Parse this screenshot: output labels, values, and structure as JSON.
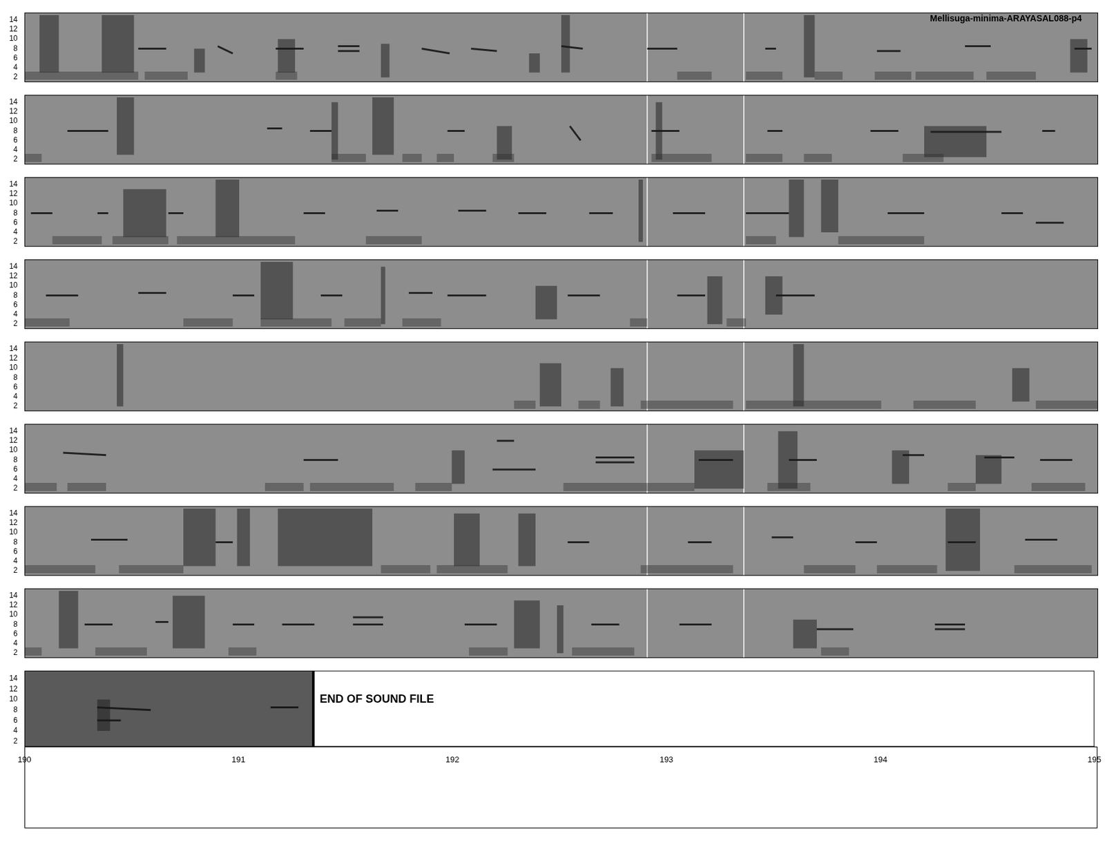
{
  "chart_data": [
    {
      "type": "spectrogram",
      "title": "Mellisuga-minima-ARAYASAL088-p4",
      "xlim": [
        150,
        155
      ],
      "ylim": [
        1,
        15.5
      ],
      "yticks": [
        2,
        4,
        6,
        8,
        10,
        12,
        14
      ],
      "tick_labels": "y",
      "bursts": [
        [
          150.07,
          150.16,
          3,
          15
        ],
        [
          150.36,
          150.51,
          3,
          15
        ],
        [
          150.79,
          150.84,
          3,
          8
        ],
        [
          151.18,
          151.26,
          3,
          10
        ],
        [
          151.66,
          151.7,
          2,
          9
        ],
        [
          152.35,
          152.4,
          3,
          7
        ],
        [
          152.5,
          152.54,
          3,
          15
        ],
        [
          153.63,
          153.68,
          2,
          15
        ],
        [
          154.87,
          154.95,
          3,
          10
        ]
      ],
      "tones": [
        [
          150.53,
          150.66,
          8,
          8
        ],
        [
          150.9,
          150.97,
          8.5,
          7
        ],
        [
          151.17,
          151.3,
          8,
          8
        ],
        [
          151.46,
          151.56,
          7.5,
          7.5
        ],
        [
          151.46,
          151.56,
          8.5,
          8.5
        ],
        [
          151.85,
          151.98,
          8,
          7
        ],
        [
          152.08,
          152.2,
          8,
          7.5
        ],
        [
          152.5,
          152.6,
          8.5,
          8
        ],
        [
          152.9,
          153.04,
          8,
          8
        ],
        [
          153.45,
          153.5,
          8,
          8
        ],
        [
          153.97,
          154.08,
          7.5,
          7.5
        ],
        [
          154.38,
          154.5,
          8.5,
          8.5
        ],
        [
          154.89,
          154.97,
          8,
          8
        ]
      ],
      "hum": [
        [
          150,
          150.53,
          1.5,
          3.2
        ],
        [
          150.56,
          150.76,
          1.5,
          3.2
        ],
        [
          151.17,
          151.27,
          1.5,
          3.2
        ],
        [
          153.04,
          153.2,
          1.5,
          3.2
        ],
        [
          153.36,
          153.53,
          1.5,
          3.2
        ],
        [
          153.68,
          153.81,
          1.5,
          3.2
        ],
        [
          153.96,
          154.13,
          1.5,
          3.2
        ],
        [
          154.15,
          154.42,
          1.5,
          3.2
        ],
        [
          154.48,
          154.71,
          1.5,
          3.2
        ]
      ],
      "markers": [
        152.9,
        153.35
      ]
    },
    {
      "type": "spectrogram",
      "xlim": [
        155,
        160
      ],
      "ylim": [
        1,
        15.5
      ],
      "yticks": [
        2,
        4,
        6,
        8,
        10,
        12,
        14
      ],
      "tick_labels": "y",
      "bursts": [
        [
          155.43,
          155.51,
          3,
          15
        ],
        [
          156.62,
          156.72,
          3,
          15
        ],
        [
          156.43,
          156.46,
          2,
          14
        ],
        [
          157.2,
          157.27,
          2,
          9
        ],
        [
          157.94,
          157.97,
          2,
          14
        ],
        [
          159.19,
          159.48,
          2.5,
          9
        ]
      ],
      "tones": [
        [
          155.2,
          155.39,
          8,
          8
        ],
        [
          156.13,
          156.2,
          8.5,
          8.5
        ],
        [
          156.33,
          156.43,
          8,
          8
        ],
        [
          156.97,
          157.05,
          8,
          8
        ],
        [
          157.54,
          157.59,
          9,
          6
        ],
        [
          157.92,
          158.05,
          8,
          8
        ],
        [
          158.46,
          158.53,
          8,
          8
        ],
        [
          158.94,
          159.07,
          8,
          8
        ],
        [
          159.22,
          159.55,
          7.8,
          7.8
        ],
        [
          159.74,
          159.8,
          8,
          8
        ]
      ],
      "hum": [
        [
          155,
          155.08,
          1.5,
          3.2
        ],
        [
          156.43,
          156.59,
          1.5,
          3.2
        ],
        [
          156.76,
          156.85,
          1.5,
          3.2
        ],
        [
          156.92,
          157,
          1.5,
          3.2
        ],
        [
          157.18,
          157.28,
          1.5,
          3.2
        ],
        [
          157.92,
          158.2,
          1.5,
          3.2
        ],
        [
          158.36,
          158.53,
          1.5,
          3.2
        ],
        [
          158.63,
          158.76,
          1.5,
          3.2
        ],
        [
          159.09,
          159.28,
          1.5,
          3.2
        ]
      ],
      "markers": [
        157.9,
        158.35
      ]
    },
    {
      "type": "spectrogram",
      "xlim": [
        160,
        165
      ],
      "ylim": [
        1,
        15.5
      ],
      "yticks": [
        2,
        4,
        6,
        8,
        10,
        12,
        14
      ],
      "tick_labels": "y",
      "bursts": [
        [
          160.46,
          160.66,
          3,
          13
        ],
        [
          160.89,
          161,
          3,
          15
        ],
        [
          162.86,
          162.88,
          2,
          15
        ],
        [
          163.56,
          163.63,
          3,
          15
        ],
        [
          163.71,
          163.79,
          4,
          15
        ]
      ],
      "tones": [
        [
          160.03,
          160.13,
          8,
          8
        ],
        [
          160.34,
          160.39,
          8,
          8
        ],
        [
          160.67,
          160.74,
          8,
          8
        ],
        [
          161.3,
          161.4,
          8,
          8
        ],
        [
          161.64,
          161.74,
          8.5,
          8.5
        ],
        [
          162.02,
          162.15,
          8.5,
          8.5
        ],
        [
          162.3,
          162.43,
          8,
          8
        ],
        [
          162.63,
          162.74,
          8,
          8
        ],
        [
          163.02,
          163.17,
          8,
          8
        ],
        [
          163.36,
          163.56,
          8,
          8
        ],
        [
          164.02,
          164.19,
          8,
          8
        ],
        [
          164.55,
          164.65,
          8,
          8
        ],
        [
          164.71,
          164.84,
          6,
          6
        ]
      ],
      "hum": [
        [
          160.13,
          160.36,
          1.5,
          3.2
        ],
        [
          160.41,
          160.67,
          1.5,
          3.2
        ],
        [
          160.71,
          161.26,
          1.5,
          3.2
        ],
        [
          161.59,
          161.85,
          1.5,
          3.2
        ],
        [
          163.36,
          163.5,
          1.5,
          3.2
        ],
        [
          163.79,
          164.19,
          1.5,
          3.2
        ]
      ],
      "markers": [
        162.9,
        163.35
      ]
    },
    {
      "type": "spectrogram",
      "xlim": [
        165,
        170
      ],
      "ylim": [
        1,
        15.5
      ],
      "yticks": [
        2,
        4,
        6,
        8,
        10,
        12,
        14
      ],
      "tick_labels": "y",
      "bursts": [
        [
          166.1,
          166.25,
          3,
          15
        ],
        [
          168.18,
          168.25,
          2,
          12
        ],
        [
          168.45,
          168.53,
          4,
          12
        ],
        [
          166.66,
          166.68,
          2,
          14
        ],
        [
          167.38,
          167.48,
          3,
          10
        ]
      ],
      "tones": [
        [
          165.1,
          165.25,
          8,
          8
        ],
        [
          165.53,
          165.66,
          8.5,
          8.5
        ],
        [
          165.97,
          166.07,
          8,
          8
        ],
        [
          166.38,
          166.48,
          8,
          8
        ],
        [
          166.79,
          166.9,
          8.5,
          8.5
        ],
        [
          166.97,
          167.15,
          8,
          8
        ],
        [
          167.53,
          167.68,
          8,
          8
        ],
        [
          168.04,
          168.17,
          8,
          8
        ],
        [
          168.5,
          168.68,
          8,
          8
        ]
      ],
      "hum": [
        [
          165,
          165.21,
          1.5,
          3.2
        ],
        [
          165.74,
          165.97,
          1.5,
          3.2
        ],
        [
          166.1,
          166.43,
          1.5,
          3.2
        ],
        [
          166.49,
          166.66,
          1.5,
          3.2
        ],
        [
          166.76,
          166.94,
          1.5,
          3.2
        ],
        [
          167.82,
          167.9,
          1.5,
          3.2
        ],
        [
          168.27,
          168.36,
          1.5,
          3.2
        ]
      ],
      "markers": [
        167.9,
        168.35
      ]
    },
    {
      "type": "spectrogram",
      "xlim": [
        170,
        175
      ],
      "ylim": [
        1,
        15.5
      ],
      "yticks": [
        2,
        4,
        6,
        8,
        10,
        12,
        14
      ],
      "tick_labels": "y",
      "bursts": [
        [
          170.43,
          170.46,
          2,
          15
        ],
        [
          172.4,
          172.5,
          2,
          11
        ],
        [
          172.73,
          172.79,
          2,
          10
        ],
        [
          173.58,
          173.63,
          2,
          15
        ],
        [
          174.6,
          174.68,
          3,
          10
        ]
      ],
      "tones": [],
      "hum": [
        [
          172.28,
          172.38,
          1.5,
          3.2
        ],
        [
          172.58,
          172.68,
          1.5,
          3.2
        ],
        [
          172.87,
          173.3,
          1.5,
          3.2
        ],
        [
          173.36,
          173.99,
          1.5,
          3.2
        ],
        [
          174.14,
          174.43,
          1.5,
          3.2
        ],
        [
          174.71,
          175,
          1.5,
          3.2
        ]
      ],
      "markers": [
        172.9,
        173.35
      ]
    },
    {
      "type": "spectrogram",
      "xlim": [
        175,
        180
      ],
      "ylim": [
        1,
        15.5
      ],
      "yticks": [
        2,
        4,
        6,
        8,
        10,
        12,
        14
      ],
      "tick_labels": "y",
      "bursts": [
        [
          178.12,
          178.35,
          2,
          10
        ],
        [
          178.51,
          178.6,
          2,
          14
        ],
        [
          179.04,
          179.12,
          3,
          10
        ],
        [
          179.43,
          179.55,
          3,
          9
        ],
        [
          176.99,
          177.05,
          3,
          10
        ]
      ],
      "tones": [
        [
          175.18,
          175.38,
          9.5,
          9
        ],
        [
          176.3,
          176.46,
          8,
          8
        ],
        [
          177.2,
          177.28,
          12,
          12
        ],
        [
          177.18,
          177.38,
          6,
          6
        ],
        [
          177.66,
          177.84,
          7.5,
          7.5
        ],
        [
          177.66,
          177.84,
          8.5,
          8.5
        ],
        [
          178.14,
          178.3,
          8,
          8
        ],
        [
          178.56,
          178.69,
          8,
          8
        ],
        [
          179.09,
          179.19,
          9,
          9
        ],
        [
          179.47,
          179.61,
          8.5,
          8.5
        ],
        [
          179.73,
          179.88,
          8,
          8
        ]
      ],
      "hum": [
        [
          175,
          175.15,
          1.5,
          3.2
        ],
        [
          175.2,
          175.38,
          1.5,
          3.2
        ],
        [
          176.12,
          176.3,
          1.5,
          3.2
        ],
        [
          176.33,
          176.72,
          1.5,
          3.2
        ],
        [
          176.82,
          176.99,
          1.5,
          3.2
        ],
        [
          177.51,
          177.9,
          1.5,
          3.2
        ],
        [
          177.9,
          178.12,
          1.5,
          3.2
        ],
        [
          178.46,
          178.66,
          1.5,
          3.2
        ],
        [
          179.3,
          179.43,
          1.5,
          3.2
        ],
        [
          179.69,
          179.94,
          1.5,
          3.2
        ]
      ],
      "markers": [
        177.9,
        178.35
      ]
    },
    {
      "type": "spectrogram",
      "xlim": [
        180,
        185
      ],
      "ylim": [
        1,
        15.5
      ],
      "yticks": [
        2,
        4,
        6,
        8,
        10,
        12,
        14
      ],
      "tick_labels": "y",
      "bursts": [
        [
          180.74,
          180.89,
          3,
          15
        ],
        [
          181.18,
          181.62,
          3,
          15
        ],
        [
          180.99,
          181.05,
          3,
          15
        ],
        [
          182,
          182.12,
          3,
          14
        ],
        [
          182.3,
          182.38,
          3,
          14
        ],
        [
          184.29,
          184.45,
          2,
          15
        ]
      ],
      "tones": [
        [
          180.31,
          180.48,
          8.5,
          8.5
        ],
        [
          180.89,
          180.97,
          8,
          8
        ],
        [
          182.53,
          182.63,
          8,
          8
        ],
        [
          183.09,
          183.2,
          8,
          8
        ],
        [
          183.48,
          183.58,
          9,
          9
        ],
        [
          183.87,
          183.97,
          8,
          8
        ],
        [
          184.3,
          184.43,
          8,
          8
        ],
        [
          184.66,
          184.81,
          8.5,
          8.5
        ]
      ],
      "hum": [
        [
          180,
          180.33,
          1.5,
          3.2
        ],
        [
          180.44,
          180.74,
          1.5,
          3.2
        ],
        [
          181.66,
          181.89,
          1.5,
          3.2
        ],
        [
          181.92,
          182.25,
          1.5,
          3.2
        ],
        [
          182.87,
          183.3,
          1.5,
          3.2
        ],
        [
          183.63,
          183.87,
          1.5,
          3.2
        ],
        [
          183.97,
          184.25,
          1.5,
          3.2
        ],
        [
          184.61,
          184.97,
          1.5,
          3.2
        ]
      ],
      "markers": [
        182.9,
        183.35
      ]
    },
    {
      "type": "spectrogram",
      "xlim": [
        185,
        190
      ],
      "ylim": [
        1,
        15.5
      ],
      "yticks": [
        2,
        4,
        6,
        8,
        10,
        12,
        14
      ],
      "tick_labels": "y",
      "bursts": [
        [
          185.16,
          185.25,
          3,
          15
        ],
        [
          185.69,
          185.84,
          3,
          14
        ],
        [
          187.28,
          187.4,
          3,
          13
        ],
        [
          187.48,
          187.51,
          2,
          12
        ],
        [
          188.58,
          188.69,
          3,
          9
        ]
      ],
      "tones": [
        [
          185.28,
          185.41,
          8,
          8
        ],
        [
          185.61,
          185.67,
          8.5,
          8.5
        ],
        [
          185.97,
          186.07,
          8,
          8
        ],
        [
          186.2,
          186.35,
          8,
          8
        ],
        [
          186.53,
          186.67,
          8,
          8
        ],
        [
          186.53,
          186.67,
          9.5,
          9.5
        ],
        [
          187.05,
          187.2,
          8,
          8
        ],
        [
          187.64,
          187.77,
          8,
          8
        ],
        [
          188.05,
          188.2,
          8,
          8
        ],
        [
          188.69,
          188.86,
          7,
          7
        ],
        [
          189.24,
          189.38,
          8,
          8
        ],
        [
          189.24,
          189.38,
          7,
          7
        ]
      ],
      "hum": [
        [
          185,
          185.08,
          1.5,
          3.2
        ],
        [
          185.33,
          185.57,
          1.5,
          3.2
        ],
        [
          185.95,
          186.08,
          1.5,
          3.2
        ],
        [
          187.07,
          187.25,
          1.5,
          3.2
        ],
        [
          187.55,
          187.84,
          1.5,
          3.2
        ],
        [
          188.71,
          188.84,
          1.5,
          3.2
        ]
      ],
      "markers": [
        187.9,
        188.35
      ]
    },
    {
      "type": "spectrogram",
      "xlim": [
        190,
        195
      ],
      "ylim": [
        1,
        15.5
      ],
      "yticks": [
        2,
        4,
        6,
        8,
        10,
        12,
        14
      ],
      "xticks": [
        190,
        191,
        192,
        193,
        194,
        195
      ],
      "bursts": [
        [
          190.34,
          190.4,
          4,
          10
        ]
      ],
      "tones": [
        [
          190.34,
          190.59,
          8.5,
          8
        ],
        [
          190.34,
          190.45,
          6,
          6
        ],
        [
          191.15,
          191.28,
          8.5,
          8.5
        ]
      ],
      "hum": [],
      "end": 191.35,
      "annotations": [
        {
          "text": "END OF SOUND FILE",
          "x": 191.38,
          "y": 10
        }
      ]
    }
  ]
}
